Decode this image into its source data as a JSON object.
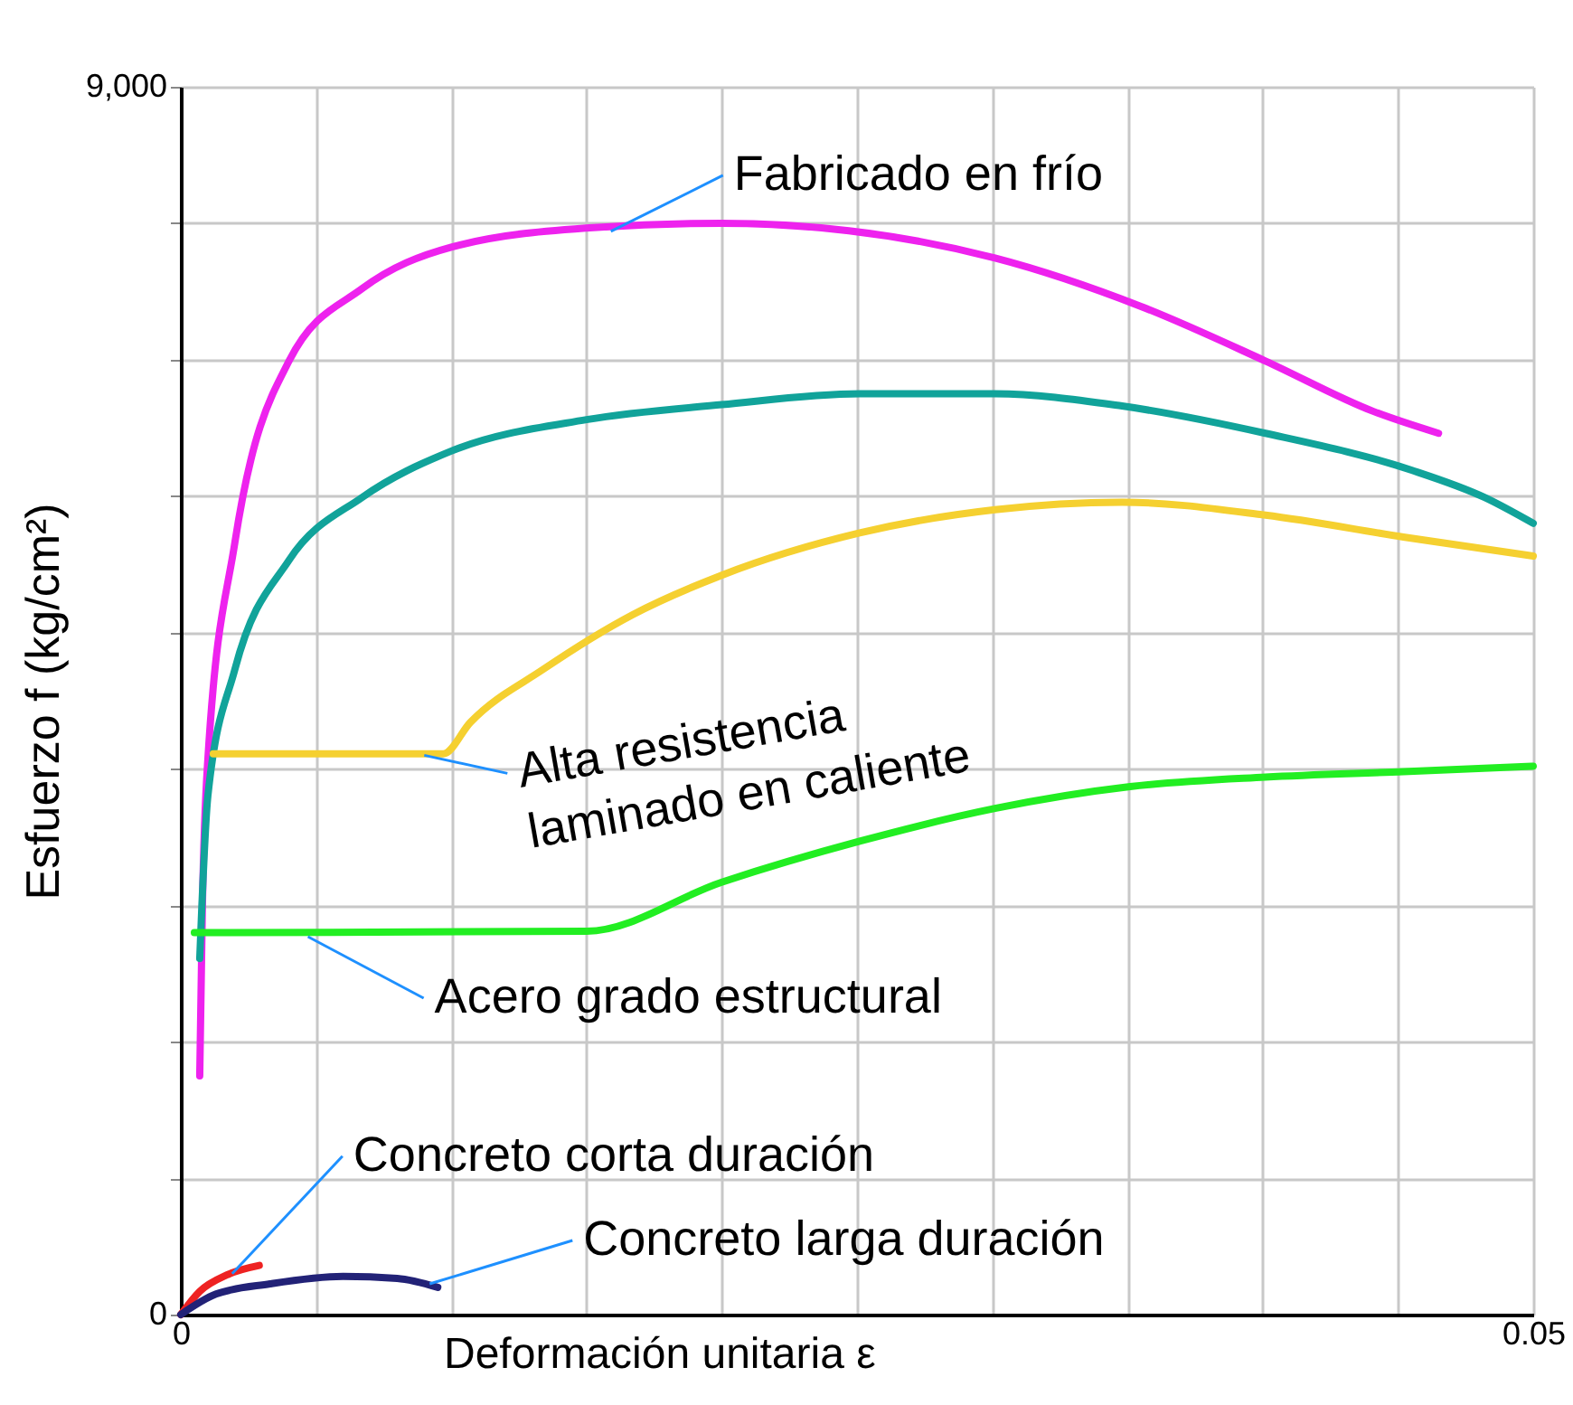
{
  "chart_data": {
    "type": "line",
    "xlabel": "Deformación unitaria ε",
    "ylabel": "Esfuerzo f (kg/cm²)",
    "xlim": [
      0,
      0.05
    ],
    "xticks": [
      0,
      {
        "value": 0.005,
        "label": null
      },
      {
        "value": 0.01,
        "label": null
      },
      {
        "value": 0.015,
        "label": null
      },
      {
        "value": 0.02,
        "label": null
      },
      {
        "value": 0.025,
        "label": null
      },
      {
        "value": 0.03,
        "label": null
      },
      {
        "value": 0.035,
        "label": null
      },
      {
        "value": 0.04,
        "label": null
      },
      {
        "value": 0.045,
        "label": null
      },
      0.05
    ],
    "ylim": [
      0,
      9000
    ],
    "yticks": [
      0,
      {
        "value": 1000,
        "label": null
      },
      {
        "value": 2000,
        "label": null
      },
      {
        "value": 3000,
        "label": null
      },
      {
        "value": 4000,
        "label": null
      },
      {
        "value": 5000,
        "label": null
      },
      {
        "value": 6000,
        "label": null
      },
      {
        "value": 7000,
        "label": null
      },
      {
        "value": 8000,
        "label": null
      },
      {
        "value": 9000,
        "label": "9,000"
      }
    ],
    "grid": true,
    "series": [
      {
        "color": "#ee22ee",
        "x": [
          0.0007,
          0.0008,
          0.001,
          0.002,
          0.004,
          0.0067,
          0.01,
          0.0154,
          0.02,
          0.0247,
          0.0301,
          0.0355,
          0.0401,
          0.0441,
          0.0465
        ],
        "values": [
          1750,
          3010,
          4070,
          5660,
          6990,
          7520,
          7825,
          7970,
          8000,
          7945,
          7745,
          7390,
          6990,
          6620,
          6460
        ]
      },
      {
        "color": "#11a39a",
        "x": [
          0.0007,
          0.001,
          0.002,
          0.004,
          0.0067,
          0.01,
          0.015,
          0.02,
          0.0251,
          0.0301,
          0.0348,
          0.0401,
          0.0455,
          0.0482,
          0.05
        ],
        "values": [
          2610,
          3800,
          4730,
          5530,
          5990,
          6330,
          6560,
          6670,
          6750,
          6750,
          6660,
          6460,
          6190,
          5990,
          5800
        ]
      },
      {
        "color": "#f5d030",
        "x": [
          0.0012,
          0.0097,
          0.0107,
          0.0134,
          0.0167,
          0.02,
          0.0251,
          0.0301,
          0.0348,
          0.0401,
          0.0452,
          0.05
        ],
        "values": [
          4110,
          4110,
          4340,
          4730,
          5130,
          5420,
          5730,
          5900,
          5955,
          5860,
          5700,
          5560
        ]
      },
      {
        "color": "#22ee22",
        "x": [
          0.0005,
          0.015,
          0.02,
          0.0251,
          0.0301,
          0.0351,
          0.0401,
          0.0452,
          0.05
        ],
        "values": [
          2800,
          2810,
          3170,
          3470,
          3710,
          3870,
          3940,
          3980,
          4020
        ]
      },
      {
        "color": "#ee2222",
        "x": [
          0,
          0.0007,
          0.0017,
          0.0029
        ],
        "values": [
          0,
          170,
          290,
          360
        ]
      },
      {
        "color": "#222277",
        "x": [
          0,
          0.0013,
          0.0033,
          0.006,
          0.008,
          0.0095
        ],
        "values": [
          0,
          150,
          225,
          280,
          265,
          200
        ]
      }
    ],
    "annotations": [
      {
        "text": "Fabricado en frío",
        "x": 0.0159,
        "y": 7940
      },
      {
        "text": "Alta resistencia\nlaminado en caliente",
        "x": 0.009,
        "y": 4100
      },
      {
        "text": "Acero grado estructural",
        "x": 0.0047,
        "y": 2770
      },
      {
        "text": "Concreto corta duración",
        "x": 0.0019,
        "y": 300
      },
      {
        "text": "Concreto larga duración",
        "x": 0.0092,
        "y": 225
      }
    ]
  }
}
